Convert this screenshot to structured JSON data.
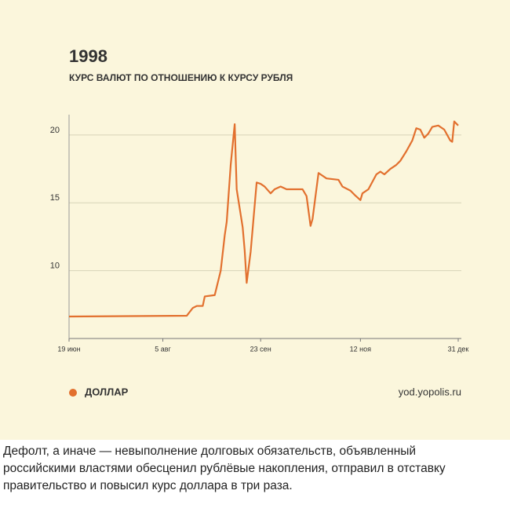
{
  "chart_data": {
    "type": "line",
    "title": "1998",
    "subtitle": "КУРС ВАЛЮТ ПО ОТНОШЕНИЮ К КУРСУ РУБЛЯ",
    "source": "yod.yopolis.ru",
    "x": [
      0,
      59,
      62,
      64,
      67,
      68,
      73,
      76,
      78,
      79,
      81,
      83,
      84,
      87,
      88,
      89,
      91,
      94,
      96,
      98,
      101,
      103,
      106,
      109,
      113,
      117,
      119,
      121,
      122,
      125,
      129,
      135,
      137,
      141,
      143,
      146,
      147,
      150,
      154,
      156,
      158,
      161,
      164,
      166,
      169,
      172,
      174,
      176,
      178,
      180,
      182,
      185,
      188,
      191,
      192,
      193,
      195
    ],
    "series": [
      {
        "name": "ДОЛЛАР",
        "color": "#e2702e",
        "values": [
          6.62,
          6.68,
          7.25,
          7.4,
          7.4,
          8.1,
          8.2,
          10.0,
          12.6,
          13.6,
          17.8,
          20.8,
          16.0,
          13.2,
          11.5,
          9.1,
          11.4,
          16.5,
          16.4,
          16.2,
          15.7,
          16.0,
          16.2,
          16.0,
          16.0,
          16.0,
          15.5,
          13.3,
          13.8,
          17.2,
          16.8,
          16.7,
          16.2,
          15.9,
          15.6,
          15.2,
          15.7,
          16.0,
          17.1,
          17.3,
          17.1,
          17.5,
          17.8,
          18.1,
          18.8,
          19.6,
          20.5,
          20.4,
          19.8,
          20.1,
          20.6,
          20.7,
          20.4,
          19.6,
          19.5,
          21.0,
          20.7
        ]
      }
    ],
    "xlim": [
      0,
      195
    ],
    "xticks": [
      {
        "value": 0,
        "label": "19 июн"
      },
      {
        "value": 47,
        "label": "5 авг"
      },
      {
        "value": 96,
        "label": "23 сен"
      },
      {
        "value": 146,
        "label": "12 ноя"
      },
      {
        "value": 195,
        "label": "31 дек"
      }
    ],
    "ylim": [
      5,
      21.5
    ],
    "yticks": [
      10,
      15,
      20
    ],
    "grid": true
  },
  "caption": "Дефолт, а иначе — невыполнение долговых обязательств, объявленный российскими властями обесценил рублёвые накопления, отправил в отставку правительство и повысил курс доллара в три раза."
}
